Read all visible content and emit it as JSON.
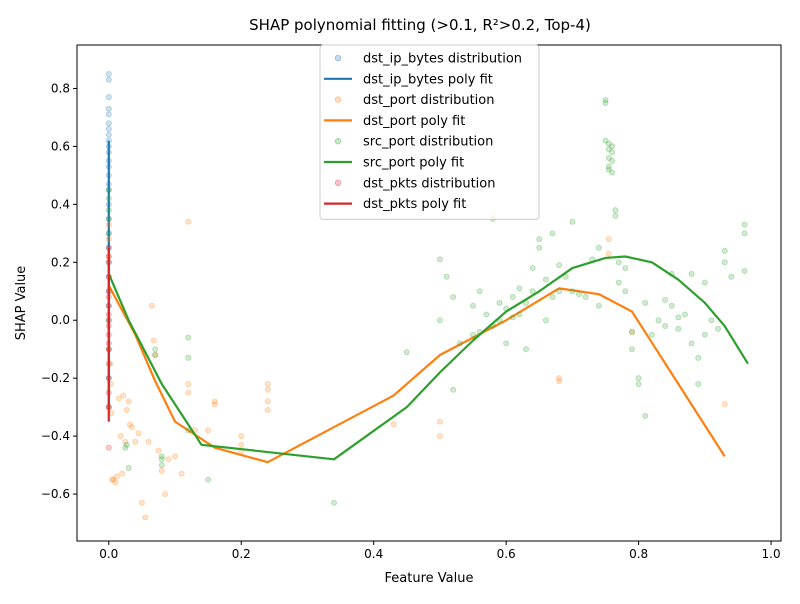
{
  "chart_data": {
    "type": "scatter",
    "title": "SHAP polynomial fitting (>0.1, R²>0.2, Top-4)",
    "xlabel": "Feature Value",
    "ylabel": "SHAP Value",
    "xlim": [
      -0.048,
      1.015
    ],
    "ylim": [
      -0.762,
      0.95
    ],
    "x_ticks": [
      0.0,
      0.2,
      0.4,
      0.6,
      0.8,
      1.0
    ],
    "x_tick_labels": [
      "0.0",
      "0.2",
      "0.4",
      "0.6",
      "0.8",
      "1.0"
    ],
    "y_ticks": [
      -0.6,
      -0.4,
      -0.2,
      0.0,
      0.2,
      0.4,
      0.6,
      0.8
    ],
    "y_tick_labels": [
      "−0.6",
      "−0.4",
      "−0.2",
      "0.0",
      "0.2",
      "0.4",
      "0.6",
      "0.8"
    ],
    "grid": false,
    "legend_position": "top-center",
    "legend": [
      {
        "label": "dst_ip_bytes distribution",
        "kind": "marker",
        "color": "#1f77b4"
      },
      {
        "label": "dst_ip_bytes poly fit",
        "kind": "line",
        "color": "#1f77b4"
      },
      {
        "label": "dst_port distribution",
        "kind": "marker",
        "color": "#ff7f0e"
      },
      {
        "label": "dst_port poly fit",
        "kind": "line",
        "color": "#ff7f0e"
      },
      {
        "label": "src_port distribution",
        "kind": "marker",
        "color": "#2ca02c"
      },
      {
        "label": "src_port poly fit",
        "kind": "line",
        "color": "#2ca02c"
      },
      {
        "label": "dst_pkts distribution",
        "kind": "marker",
        "color": "#d62728"
      },
      {
        "label": "dst_pkts poly fit",
        "kind": "line",
        "color": "#d62728"
      }
    ],
    "series": [
      {
        "name": "dst_ip_bytes distribution",
        "kind": "scatter",
        "color": "#1f77b4",
        "x": [
          0,
          0,
          0,
          0,
          0,
          0,
          0,
          0,
          0,
          0,
          0,
          0,
          0,
          0,
          0,
          0,
          0,
          0,
          0,
          0,
          0,
          0,
          0,
          0,
          0,
          0,
          0,
          0
        ],
        "y": [
          0.85,
          0.83,
          0.77,
          0.73,
          0.71,
          0.68,
          0.66,
          0.64,
          0.62,
          0.6,
          0.58,
          0.55,
          0.53,
          0.5,
          0.47,
          0.45,
          0.4,
          0.35,
          0.3,
          0.25,
          0.2,
          0.15,
          0.1,
          0.05,
          0.0,
          -0.1,
          -0.2,
          -0.3
        ]
      },
      {
        "name": "dst_ip_bytes poly fit",
        "kind": "line",
        "color": "#1f77b4",
        "x": [
          0,
          0,
          0,
          0,
          0
        ],
        "y": [
          0.62,
          0.4,
          0.2,
          0.0,
          -0.3
        ]
      },
      {
        "name": "dst_port distribution",
        "kind": "scatter",
        "color": "#ff7f0e",
        "x": [
          0,
          0,
          0,
          0,
          0,
          0.002,
          0.003,
          0.004,
          0.005,
          0.007,
          0.01,
          0.012,
          0.015,
          0.018,
          0.02,
          0.022,
          0.025,
          0.027,
          0.03,
          0.032,
          0.035,
          0.04,
          0.045,
          0.05,
          0.055,
          0.06,
          0.065,
          0.068,
          0.07,
          0.075,
          0.08,
          0.085,
          0.09,
          0.1,
          0.11,
          0.12,
          0.12,
          0.12,
          0.13,
          0.15,
          0.16,
          0.16,
          0.2,
          0.2,
          0.2,
          0.24,
          0.24,
          0.24,
          0.24,
          0.43,
          0.5,
          0.5,
          0.58,
          0.68,
          0.68,
          0.755,
          0.755,
          0.79,
          0.93
        ],
        "y": [
          0.33,
          0.28,
          0.22,
          -0.1,
          -0.3,
          -0.15,
          -0.22,
          -0.32,
          -0.55,
          -0.55,
          -0.56,
          -0.54,
          -0.27,
          -0.4,
          -0.53,
          -0.26,
          -0.42,
          -0.31,
          -0.28,
          -0.36,
          -0.37,
          -0.42,
          -0.39,
          -0.63,
          -0.68,
          -0.42,
          0.05,
          -0.07,
          -0.12,
          -0.45,
          -0.52,
          -0.6,
          -0.48,
          -0.47,
          -0.53,
          0.34,
          -0.22,
          -0.25,
          -0.38,
          -0.38,
          -0.28,
          -0.29,
          -0.4,
          -0.43,
          -0.45,
          -0.22,
          -0.24,
          -0.28,
          -0.31,
          -0.36,
          -0.35,
          -0.4,
          0.36,
          -0.2,
          -0.21,
          0.28,
          0.23,
          -0.04,
          -0.29
        ]
      },
      {
        "name": "dst_port poly fit",
        "kind": "line",
        "color": "#ff7f0e",
        "x": [
          0.0,
          0.04,
          0.07,
          0.1,
          0.16,
          0.24,
          0.43,
          0.5,
          0.6,
          0.68,
          0.74,
          0.79,
          0.93
        ],
        "y": [
          0.12,
          -0.05,
          -0.21,
          -0.35,
          -0.44,
          -0.49,
          -0.26,
          -0.12,
          0.0,
          0.11,
          0.09,
          0.03,
          -0.47
        ]
      },
      {
        "name": "src_port distribution",
        "kind": "scatter",
        "color": "#2ca02c",
        "x": [
          0.0,
          0.0,
          0.0,
          0.0,
          0.0,
          0.025,
          0.027,
          0.03,
          0.07,
          0.07,
          0.08,
          0.08,
          0.08,
          0.12,
          0.12,
          0.12,
          0.15,
          0.34,
          0.45,
          0.5,
          0.5,
          0.51,
          0.52,
          0.52,
          0.53,
          0.55,
          0.55,
          0.56,
          0.56,
          0.57,
          0.58,
          0.58,
          0.59,
          0.59,
          0.6,
          0.6,
          0.61,
          0.61,
          0.62,
          0.62,
          0.63,
          0.63,
          0.64,
          0.64,
          0.65,
          0.65,
          0.66,
          0.66,
          0.67,
          0.67,
          0.68,
          0.68,
          0.69,
          0.7,
          0.7,
          0.71,
          0.72,
          0.73,
          0.74,
          0.74,
          0.75,
          0.75,
          0.75,
          0.755,
          0.755,
          0.755,
          0.755,
          0.755,
          0.76,
          0.76,
          0.76,
          0.76,
          0.765,
          0.765,
          0.77,
          0.77,
          0.78,
          0.78,
          0.79,
          0.79,
          0.8,
          0.8,
          0.81,
          0.81,
          0.82,
          0.83,
          0.84,
          0.84,
          0.85,
          0.85,
          0.86,
          0.86,
          0.87,
          0.88,
          0.88,
          0.89,
          0.89,
          0.9,
          0.9,
          0.91,
          0.92,
          0.93,
          0.93,
          0.94,
          0.96,
          0.96,
          0.96
        ],
        "y": [
          0.45,
          0.42,
          0.38,
          0.35,
          0.3,
          -0.44,
          -0.43,
          -0.51,
          -0.1,
          -0.12,
          -0.47,
          -0.48,
          -0.5,
          -0.06,
          -0.13,
          -0.38,
          -0.55,
          -0.63,
          -0.11,
          0.21,
          0.0,
          0.15,
          0.08,
          -0.24,
          -0.08,
          0.05,
          -0.05,
          0.1,
          -0.04,
          0.02,
          0.35,
          -0.02,
          0.06,
          0.0,
          0.04,
          -0.08,
          0.01,
          0.08,
          0.02,
          0.11,
          0.06,
          -0.1,
          0.1,
          0.18,
          0.25,
          0.28,
          0.14,
          0.0,
          0.08,
          0.3,
          0.19,
          0.1,
          0.15,
          0.34,
          0.1,
          0.09,
          0.08,
          0.21,
          0.05,
          0.25,
          0.76,
          0.75,
          0.62,
          0.61,
          0.59,
          0.56,
          0.53,
          0.52,
          0.6,
          0.58,
          0.51,
          0.55,
          0.38,
          0.36,
          0.2,
          0.13,
          0.18,
          0.1,
          -0.1,
          -0.04,
          -0.2,
          -0.22,
          -0.33,
          0.06,
          -0.05,
          0.0,
          0.07,
          -0.02,
          0.16,
          0.05,
          0.01,
          -0.03,
          0.02,
          0.16,
          -0.08,
          -0.13,
          -0.22,
          -0.05,
          0.13,
          0.0,
          -0.03,
          0.24,
          0.2,
          0.15,
          0.33,
          0.3,
          0.17
        ]
      },
      {
        "name": "src_port poly fit",
        "kind": "line",
        "color": "#2ca02c",
        "x": [
          0.0,
          0.03,
          0.08,
          0.14,
          0.34,
          0.45,
          0.5,
          0.55,
          0.6,
          0.65,
          0.7,
          0.75,
          0.78,
          0.82,
          0.86,
          0.9,
          0.93,
          0.965
        ],
        "y": [
          0.16,
          0.0,
          -0.22,
          -0.43,
          -0.48,
          -0.3,
          -0.18,
          -0.07,
          0.03,
          0.1,
          0.18,
          0.215,
          0.22,
          0.2,
          0.14,
          0.06,
          -0.02,
          -0.15
        ]
      },
      {
        "name": "dst_pkts distribution",
        "kind": "scatter",
        "color": "#d62728",
        "x": [
          0,
          0,
          0,
          0,
          0,
          0,
          0,
          0,
          0,
          0,
          0,
          0,
          0,
          0,
          0,
          0,
          0,
          0
        ],
        "y": [
          0.25,
          0.22,
          0.2,
          0.15,
          0.1,
          0.08,
          0.05,
          0.02,
          0.0,
          -0.02,
          -0.05,
          -0.08,
          -0.1,
          -0.15,
          -0.2,
          -0.25,
          -0.3,
          -0.44
        ]
      },
      {
        "name": "dst_pkts poly fit",
        "kind": "line",
        "color": "#d62728",
        "x": [
          0,
          0,
          0,
          0
        ],
        "y": [
          0.25,
          0.05,
          -0.15,
          -0.35
        ]
      }
    ]
  }
}
